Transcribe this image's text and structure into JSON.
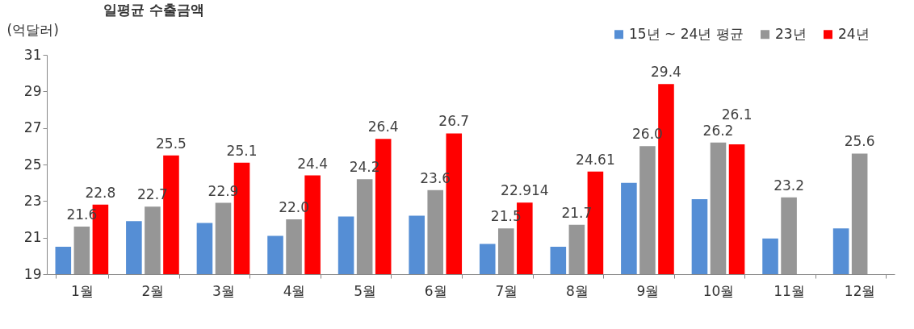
{
  "chart_data": {
    "type": "bar",
    "title": "일평균 수출금액",
    "ylabel": "(억달러)",
    "categories": [
      "1월",
      "2월",
      "3월",
      "4월",
      "5월",
      "6월",
      "7월",
      "8월",
      "9월",
      "10월",
      "11월",
      "12월"
    ],
    "series": [
      {
        "name": "15년 ~ 24년 평균",
        "color": "#558ed5",
        "values": [
          20.5,
          21.9,
          21.8,
          21.1,
          22.15,
          22.2,
          20.65,
          20.5,
          24.0,
          23.1,
          20.95,
          21.5
        ]
      },
      {
        "name": "23년",
        "color": "#969696",
        "values": [
          21.6,
          22.7,
          22.9,
          22.0,
          24.2,
          23.6,
          21.5,
          21.7,
          26.0,
          26.2,
          23.2,
          25.6
        ],
        "value_labels": [
          "21.6",
          "22.7",
          "22.9",
          "22.0",
          "24.2",
          "23.6",
          "21.5",
          "21.7",
          "26.0",
          "26.2",
          "23.2",
          "25.6"
        ]
      },
      {
        "name": "24년",
        "color": "#ff0000",
        "values": [
          22.8,
          25.5,
          25.1,
          24.4,
          26.4,
          26.7,
          22.914,
          24.61,
          29.4,
          26.1,
          null,
          null
        ],
        "value_labels": [
          "22.8",
          "25.5",
          "25.1",
          "24.4",
          "26.4",
          "26.7",
          "22.914",
          "24.61",
          "29.4",
          "26.1",
          null,
          null
        ]
      }
    ],
    "ylim": [
      19,
      31
    ],
    "yticks": [
      19,
      21,
      23,
      25,
      27,
      29,
      31
    ],
    "grid": false,
    "legend": "top right"
  }
}
